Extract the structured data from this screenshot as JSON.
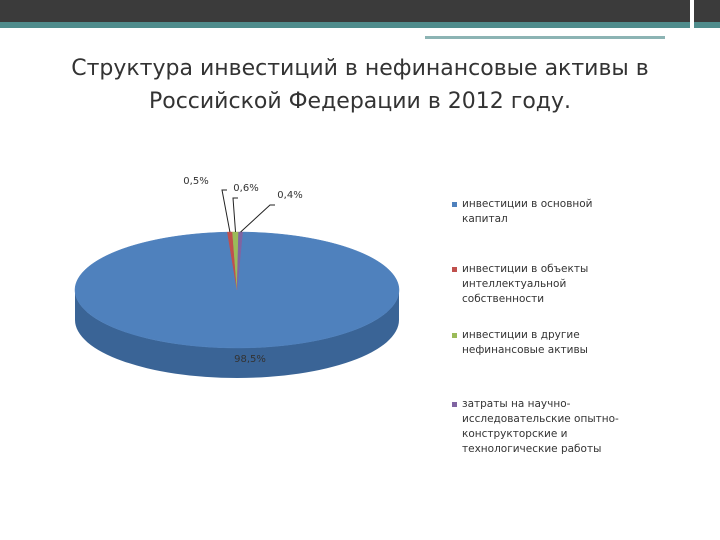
{
  "chart_data": {
    "type": "pie",
    "title": "Структура инвестиций в нефинансовые активы в Российской Федерации в 2012 году.",
    "categories": [
      "инвестиции в основной капитал",
      "инвестиции в объекты интеллектуальной собственности",
      "инвестиции в другие нефинансовые активы",
      "затраты на научно-исследовательские опытно-конструкторские и технологические работы"
    ],
    "values": [
      98.5,
      0.5,
      0.6,
      0.4
    ],
    "value_labels": [
      "98,5%",
      "0,5%",
      "0,6%",
      "0,4%"
    ],
    "colors": [
      "#4f81bd",
      "#c0504d",
      "#9bbb59",
      "#8064a2"
    ],
    "legend": "right"
  }
}
